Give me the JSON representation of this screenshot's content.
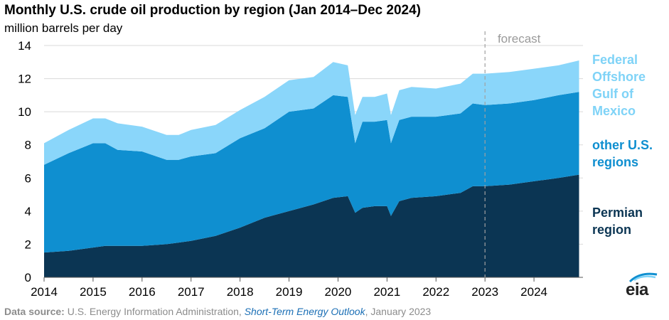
{
  "header": {
    "title": "Monthly U.S. crude oil production by region (Jan 2014–Dec 2024)",
    "subtitle": "million barrels per day"
  },
  "forecast_label": "forecast",
  "legend": [
    {
      "lines": [
        "Federal",
        "Offshore",
        "Gulf of",
        "Mexico"
      ],
      "color": "#7fd3f7"
    },
    {
      "lines": [
        "other U.S.",
        "regions"
      ],
      "color": "#0f8fd0"
    },
    {
      "lines": [
        "Permian",
        "region"
      ],
      "color": "#0b3553"
    }
  ],
  "source": {
    "label": "Data source:",
    "agency": "U.S. Energy Information Administration,",
    "publication": "Short-Term Energy Outlook",
    "date": ", January 2023"
  },
  "logo_text": "eia",
  "colors": {
    "permian": "#0b3553",
    "other": "#0f8fd0",
    "gom": "#8ad6fa",
    "forecast_line": "#a0a0a0"
  },
  "chart_data": {
    "type": "area",
    "stacked": true,
    "ylim": [
      0,
      14
    ],
    "yticks": [
      0,
      2,
      4,
      6,
      8,
      10,
      12,
      14
    ],
    "xlim": [
      2014,
      2025
    ],
    "xticks": [
      2014,
      2015,
      2016,
      2017,
      2018,
      2019,
      2020,
      2021,
      2022,
      2023,
      2024
    ],
    "forecast_start": 2023,
    "grid": "horizontal",
    "x": [
      2014.0,
      2014.5,
      2015.0,
      2015.25,
      2015.5,
      2016.0,
      2016.5,
      2016.75,
      2017.0,
      2017.5,
      2018.0,
      2018.5,
      2019.0,
      2019.5,
      2019.9,
      2020.2,
      2020.35,
      2020.5,
      2020.75,
      2021.0,
      2021.08,
      2021.25,
      2021.5,
      2022.0,
      2022.5,
      2022.75,
      2023.0,
      2023.5,
      2024.0,
      2024.5,
      2024.92
    ],
    "series": [
      {
        "name": "Permian region",
        "values": [
          1.5,
          1.6,
          1.8,
          1.9,
          1.9,
          1.9,
          2.0,
          2.1,
          2.2,
          2.5,
          3.0,
          3.6,
          4.0,
          4.4,
          4.8,
          4.9,
          3.9,
          4.2,
          4.3,
          4.3,
          3.7,
          4.6,
          4.8,
          4.9,
          5.1,
          5.5,
          5.5,
          5.6,
          5.8,
          6.0,
          6.2
        ]
      },
      {
        "name": "other U.S. regions",
        "values": [
          5.3,
          5.9,
          6.3,
          6.2,
          5.8,
          5.7,
          5.1,
          5.0,
          5.1,
          5.0,
          5.4,
          5.4,
          6.0,
          5.8,
          6.2,
          6.0,
          4.2,
          5.2,
          5.1,
          5.2,
          4.4,
          4.9,
          4.9,
          4.8,
          4.8,
          5.0,
          4.9,
          4.9,
          4.9,
          5.0,
          5.0
        ]
      },
      {
        "name": "Federal Offshore Gulf of Mexico",
        "values": [
          1.3,
          1.4,
          1.5,
          1.5,
          1.6,
          1.5,
          1.5,
          1.5,
          1.6,
          1.7,
          1.7,
          1.9,
          1.9,
          1.9,
          2.0,
          1.9,
          1.7,
          1.5,
          1.5,
          1.6,
          1.7,
          1.8,
          1.8,
          1.7,
          1.8,
          1.8,
          1.9,
          1.9,
          1.9,
          1.8,
          1.9
        ]
      }
    ]
  }
}
